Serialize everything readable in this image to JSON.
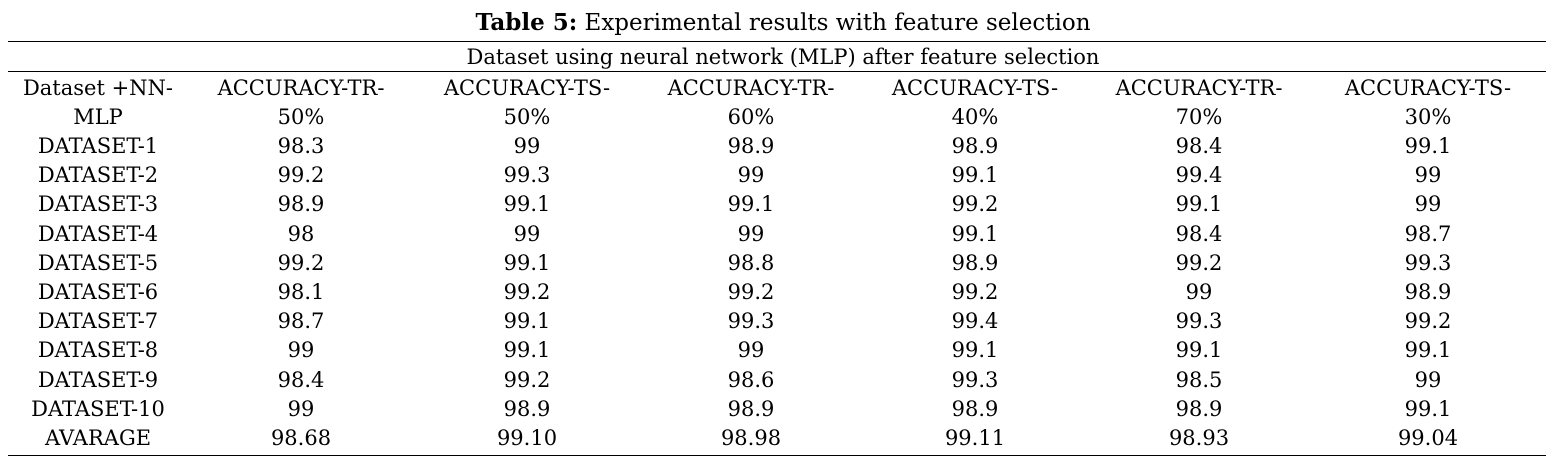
{
  "caption": {
    "lead": "Table 5:",
    "text": "Experimental results with feature selection"
  },
  "subtitle": "Dataset using neural network (MLP) after feature selection",
  "table": {
    "headers": [
      {
        "line1": "Dataset +NN-",
        "line2": "MLP"
      },
      {
        "line1": "ACCURACY-TR-",
        "line2": "50%"
      },
      {
        "line1": "ACCURACY-TS-",
        "line2": "50%"
      },
      {
        "line1": "ACCURACY-TR-",
        "line2": "60%"
      },
      {
        "line1": "ACCURACY-TS-",
        "line2": "40%"
      },
      {
        "line1": "ACCURACY-TR-",
        "line2": "70%"
      },
      {
        "line1": "ACCURACY-TS-",
        "line2": "30%"
      }
    ],
    "rows": [
      [
        "DATASET-1",
        "98.3",
        "99",
        "98.9",
        "98.9",
        "98.4",
        "99.1"
      ],
      [
        "DATASET-2",
        "99.2",
        "99.3",
        "99",
        "99.1",
        "99.4",
        "99"
      ],
      [
        "DATASET-3",
        "98.9",
        "99.1",
        "99.1",
        "99.2",
        "99.1",
        "99"
      ],
      [
        "DATASET-4",
        "98",
        "99",
        "99",
        "99.1",
        "98.4",
        "98.7"
      ],
      [
        "DATASET-5",
        "99.2",
        "99.1",
        "98.8",
        "98.9",
        "99.2",
        "99.3"
      ],
      [
        "DATASET-6",
        "98.1",
        "99.2",
        "99.2",
        "99.2",
        "99",
        "98.9"
      ],
      [
        "DATASET-7",
        "98.7",
        "99.1",
        "99.3",
        "99.4",
        "99.3",
        "99.2"
      ],
      [
        "DATASET-8",
        "99",
        "99.1",
        "99",
        "99.1",
        "99.1",
        "99.1"
      ],
      [
        "DATASET-9",
        "98.4",
        "99.2",
        "98.6",
        "99.3",
        "98.5",
        "99"
      ],
      [
        "DATASET-10",
        "99",
        "98.9",
        "98.9",
        "98.9",
        "98.9",
        "99.1"
      ],
      [
        "AVARAGE",
        "98.68",
        "99.10",
        "98.98",
        "99.11",
        "98.93",
        "99.04"
      ]
    ]
  }
}
